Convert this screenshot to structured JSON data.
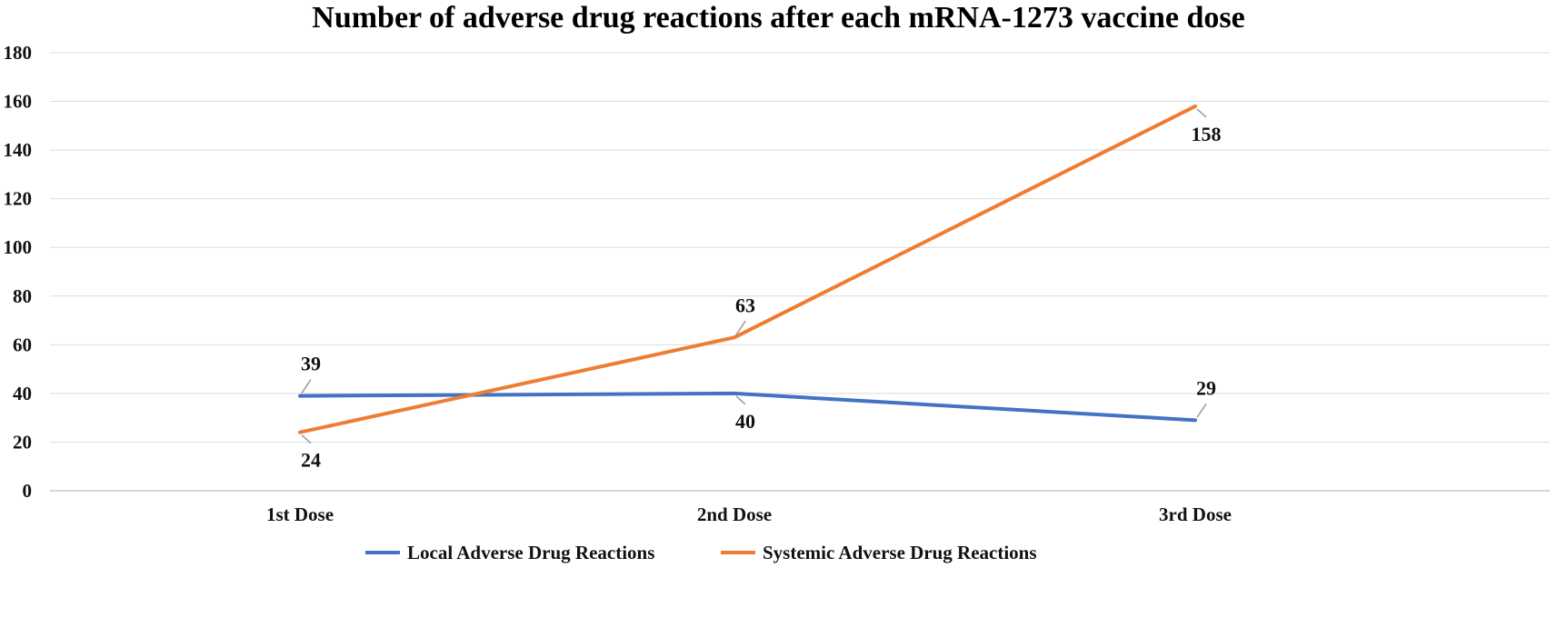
{
  "chart_data": {
    "type": "line",
    "title": "Number of adverse drug reactions after each mRNA-1273 vaccine dose",
    "categories": [
      "1st Dose",
      "2nd Dose",
      "3rd Dose"
    ],
    "ylim": [
      0,
      180
    ],
    "yticks": [
      "0",
      "20",
      "40",
      "60",
      "80",
      "100",
      "120",
      "140",
      "160",
      "180"
    ],
    "grid": true,
    "legend_position": "bottom",
    "series": [
      {
        "name": "Local Adverse Drug Reactions",
        "values": [
          39,
          40,
          29
        ],
        "color": "#4472C4",
        "label_sides": [
          "above",
          "below",
          "above"
        ]
      },
      {
        "name": "Systemic Adverse Drug Reactions",
        "values": [
          24,
          63,
          158
        ],
        "color": "#ED7D31",
        "label_sides": [
          "below",
          "above",
          "below"
        ]
      }
    ]
  }
}
